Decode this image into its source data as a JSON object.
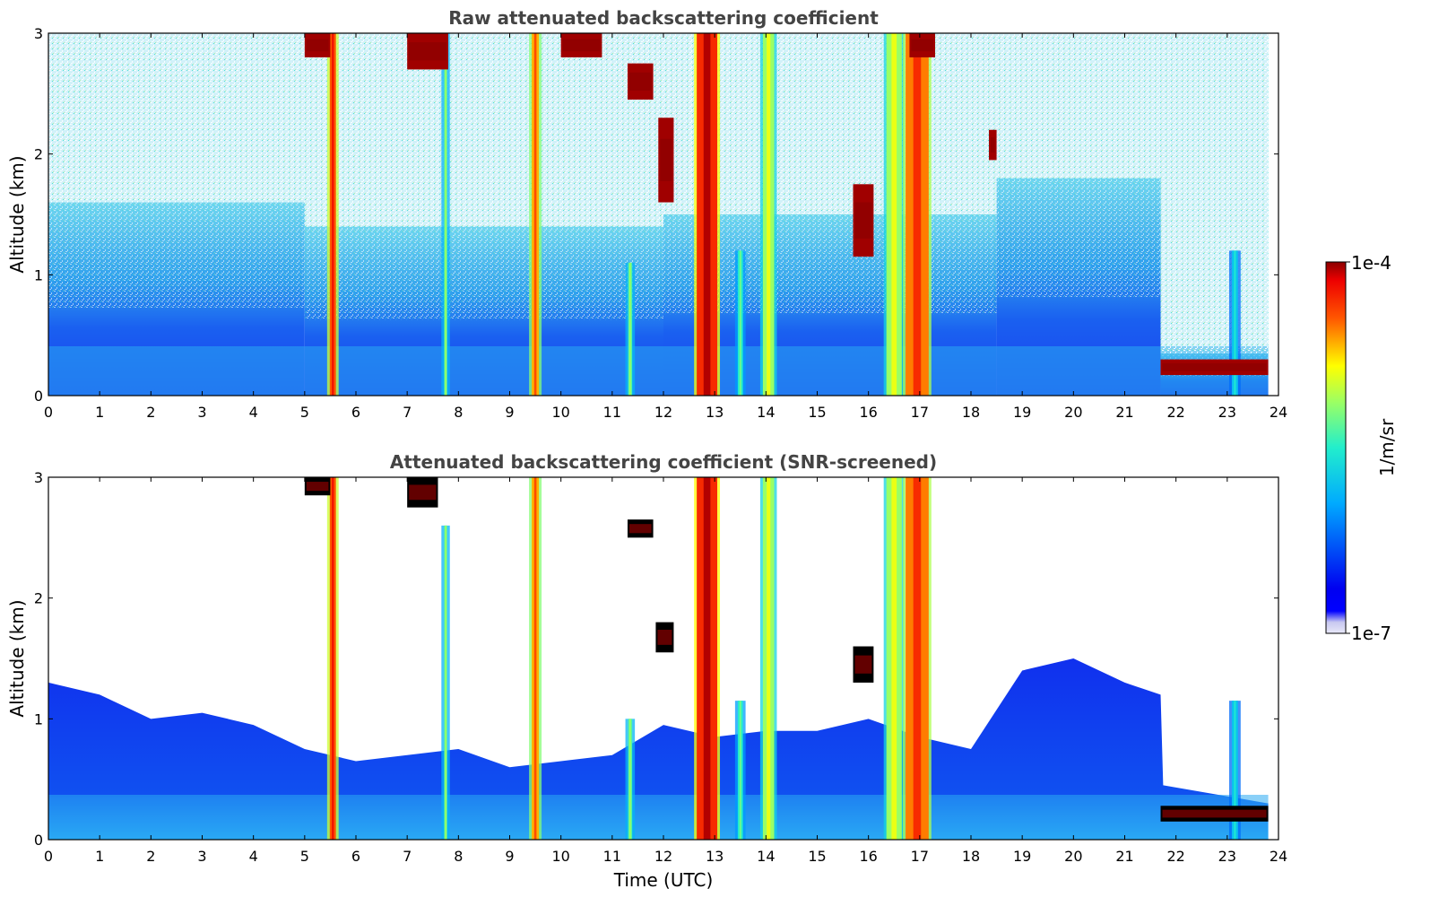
{
  "chart_data": [
    {
      "type": "heatmap",
      "title": "Raw attenuated backscattering coefficient",
      "xlabel": "",
      "ylabel": "Altitude (km)",
      "xlim": [
        0,
        24
      ],
      "ylim": [
        0,
        3
      ],
      "x_ticks": [
        "0",
        "1",
        "2",
        "3",
        "4",
        "5",
        "6",
        "7",
        "8",
        "9",
        "10",
        "11",
        "12",
        "13",
        "14",
        "15",
        "16",
        "17",
        "18",
        "19",
        "20",
        "21",
        "22",
        "23",
        "24"
      ],
      "y_ticks": [
        "0",
        "1",
        "2",
        "3"
      ],
      "background_layer": [
        {
          "x_start": 0,
          "x_end": 5,
          "top_km": 1.6
        },
        {
          "x_start": 5,
          "x_end": 12,
          "top_km": 1.4
        },
        {
          "x_start": 12,
          "x_end": 18.5,
          "top_km": 1.5
        },
        {
          "x_start": 18.5,
          "x_end": 21.7,
          "top_km": 1.8
        },
        {
          "x_start": 21.7,
          "x_end": 23.8,
          "top_km": 0.35
        }
      ],
      "plumes": [
        {
          "x": 5.55,
          "width": 0.12,
          "top_km": 3.0,
          "level": 0.85
        },
        {
          "x": 7.75,
          "width": 0.06,
          "top_km": 3.0,
          "level": 0.55
        },
        {
          "x": 9.5,
          "width": 0.14,
          "top_km": 3.0,
          "level": 0.78
        },
        {
          "x": 11.35,
          "width": 0.08,
          "top_km": 1.1,
          "level": 0.55
        },
        {
          "x": 12.85,
          "width": 0.4,
          "top_km": 3.0,
          "level": 0.9
        },
        {
          "x": 13.5,
          "width": 0.1,
          "top_km": 1.2,
          "level": 0.5
        },
        {
          "x": 14.05,
          "width": 0.22,
          "top_km": 3.0,
          "level": 0.62
        },
        {
          "x": 16.5,
          "width": 0.3,
          "top_km": 3.0,
          "level": 0.62
        },
        {
          "x": 16.95,
          "width": 0.45,
          "top_km": 3.0,
          "level": 0.82
        },
        {
          "x": 23.15,
          "width": 0.12,
          "top_km": 1.2,
          "level": 0.4
        }
      ],
      "clouds": [
        {
          "x_start": 5.0,
          "x_end": 5.5,
          "y_bottom_km": 2.8,
          "y_top_km": 3.0
        },
        {
          "x_start": 7.0,
          "x_end": 7.8,
          "y_bottom_km": 2.7,
          "y_top_km": 3.0
        },
        {
          "x_start": 10.0,
          "x_end": 10.8,
          "y_bottom_km": 2.8,
          "y_top_km": 3.0
        },
        {
          "x_start": 11.3,
          "x_end": 11.8,
          "y_bottom_km": 2.45,
          "y_top_km": 2.75
        },
        {
          "x_start": 11.9,
          "x_end": 12.2,
          "y_bottom_km": 1.6,
          "y_top_km": 2.3
        },
        {
          "x_start": 15.7,
          "x_end": 16.1,
          "y_bottom_km": 1.15,
          "y_top_km": 1.75
        },
        {
          "x_start": 16.8,
          "x_end": 17.3,
          "y_bottom_km": 2.8,
          "y_top_km": 3.0
        },
        {
          "x_start": 18.35,
          "x_end": 18.5,
          "y_bottom_km": 1.95,
          "y_top_km": 2.2
        },
        {
          "x_start": 21.7,
          "x_end": 23.8,
          "y_bottom_km": 0.17,
          "y_top_km": 0.3
        }
      ]
    },
    {
      "type": "heatmap",
      "title": "Attenuated backscattering coefficient (SNR-screened)",
      "xlabel": "Time (UTC)",
      "ylabel": "Altitude (km)",
      "xlim": [
        0,
        24
      ],
      "ylim": [
        0,
        3
      ],
      "x_ticks": [
        "0",
        "1",
        "2",
        "3",
        "4",
        "5",
        "6",
        "7",
        "8",
        "9",
        "10",
        "11",
        "12",
        "13",
        "14",
        "15",
        "16",
        "17",
        "18",
        "19",
        "20",
        "21",
        "22",
        "23",
        "24"
      ],
      "y_ticks": [
        "0",
        "1",
        "2",
        "3"
      ],
      "screened_layer_top": [
        {
          "x": 0,
          "top_km": 1.3
        },
        {
          "x": 1,
          "top_km": 1.2
        },
        {
          "x": 2,
          "top_km": 1.0
        },
        {
          "x": 3,
          "top_km": 1.05
        },
        {
          "x": 4,
          "top_km": 0.95
        },
        {
          "x": 5,
          "top_km": 0.75
        },
        {
          "x": 6,
          "top_km": 0.65
        },
        {
          "x": 7,
          "top_km": 0.7
        },
        {
          "x": 8,
          "top_km": 0.75
        },
        {
          "x": 9,
          "top_km": 0.6
        },
        {
          "x": 10,
          "top_km": 0.65
        },
        {
          "x": 11,
          "top_km": 0.7
        },
        {
          "x": 12,
          "top_km": 0.95
        },
        {
          "x": 13,
          "top_km": 0.85
        },
        {
          "x": 14,
          "top_km": 0.9
        },
        {
          "x": 15,
          "top_km": 0.9
        },
        {
          "x": 16,
          "top_km": 1.0
        },
        {
          "x": 17,
          "top_km": 0.85
        },
        {
          "x": 18,
          "top_km": 0.75
        },
        {
          "x": 19,
          "top_km": 1.4
        },
        {
          "x": 20,
          "top_km": 1.5
        },
        {
          "x": 21,
          "top_km": 1.3
        },
        {
          "x": 21.7,
          "top_km": 1.2
        },
        {
          "x": 21.75,
          "top_km": 0.45
        },
        {
          "x": 23.8,
          "top_km": 0.3
        }
      ],
      "plumes": [
        {
          "x": 5.55,
          "width": 0.12,
          "top_km": 3.0,
          "level": 0.85
        },
        {
          "x": 7.75,
          "width": 0.06,
          "top_km": 2.6,
          "level": 0.55
        },
        {
          "x": 9.5,
          "width": 0.14,
          "top_km": 3.0,
          "level": 0.78
        },
        {
          "x": 11.35,
          "width": 0.08,
          "top_km": 1.0,
          "level": 0.55
        },
        {
          "x": 12.85,
          "width": 0.4,
          "top_km": 3.0,
          "level": 0.9
        },
        {
          "x": 13.5,
          "width": 0.1,
          "top_km": 1.15,
          "level": 0.5
        },
        {
          "x": 14.05,
          "width": 0.22,
          "top_km": 3.0,
          "level": 0.62
        },
        {
          "x": 16.5,
          "width": 0.3,
          "top_km": 3.0,
          "level": 0.62
        },
        {
          "x": 16.95,
          "width": 0.45,
          "top_km": 3.0,
          "level": 0.82
        },
        {
          "x": 23.15,
          "width": 0.12,
          "top_km": 1.15,
          "level": 0.4
        }
      ],
      "clouds": [
        {
          "x_start": 5.0,
          "x_end": 5.5,
          "y_bottom_km": 2.85,
          "y_top_km": 3.0
        },
        {
          "x_start": 7.0,
          "x_end": 7.6,
          "y_bottom_km": 2.75,
          "y_top_km": 3.0
        },
        {
          "x_start": 11.3,
          "x_end": 11.8,
          "y_bottom_km": 2.5,
          "y_top_km": 2.65
        },
        {
          "x_start": 11.85,
          "x_end": 12.2,
          "y_bottom_km": 1.55,
          "y_top_km": 1.8
        },
        {
          "x_start": 15.7,
          "x_end": 16.1,
          "y_bottom_km": 1.3,
          "y_top_km": 1.6
        },
        {
          "x_start": 21.7,
          "x_end": 23.8,
          "y_bottom_km": 0.15,
          "y_top_km": 0.28
        }
      ]
    }
  ],
  "colorbar": {
    "label": "1/m/sr",
    "max_label": "1e-4",
    "min_label": "1e-7"
  },
  "colors": {
    "title_text": "#444444",
    "cloud_black": "#000000",
    "cloud_core": "#8b0000"
  }
}
